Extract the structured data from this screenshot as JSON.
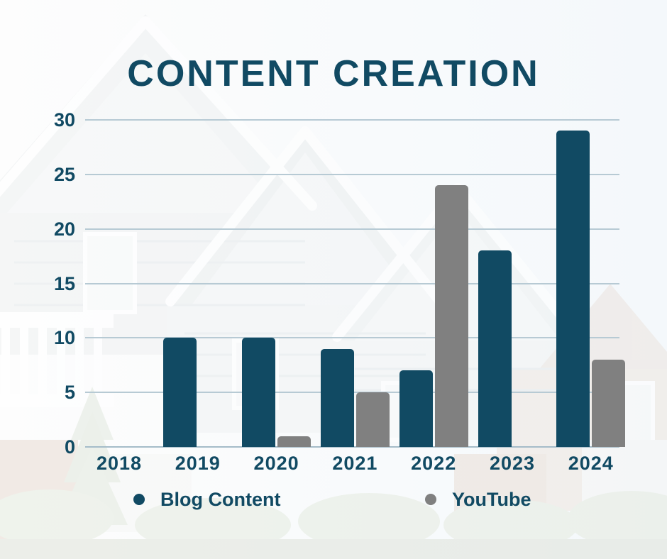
{
  "page": {
    "background_image": "faded-row-of-suburban-houses",
    "colors": {
      "accent_teal": "#114a63",
      "series_gray": "#808080",
      "gridline": "#b7cad4"
    }
  },
  "chart_data": {
    "type": "bar",
    "title": "CONTENT CREATION",
    "categories": [
      "2018",
      "2019",
      "2020",
      "2021",
      "2022",
      "2023",
      "2024"
    ],
    "series": [
      {
        "name": "Blog Content",
        "color": "#114a63",
        "values": [
          0,
          10,
          10,
          9,
          7,
          18,
          29
        ]
      },
      {
        "name": "YouTube",
        "color": "#808080",
        "values": [
          0,
          0,
          1,
          5,
          24,
          0,
          8
        ]
      }
    ],
    "xlabel": "",
    "ylabel": "",
    "ylim": [
      0,
      30
    ],
    "yticks": [
      0,
      5,
      10,
      15,
      20,
      25,
      30
    ],
    "grid": "horizontal",
    "legend_position": "bottom"
  }
}
